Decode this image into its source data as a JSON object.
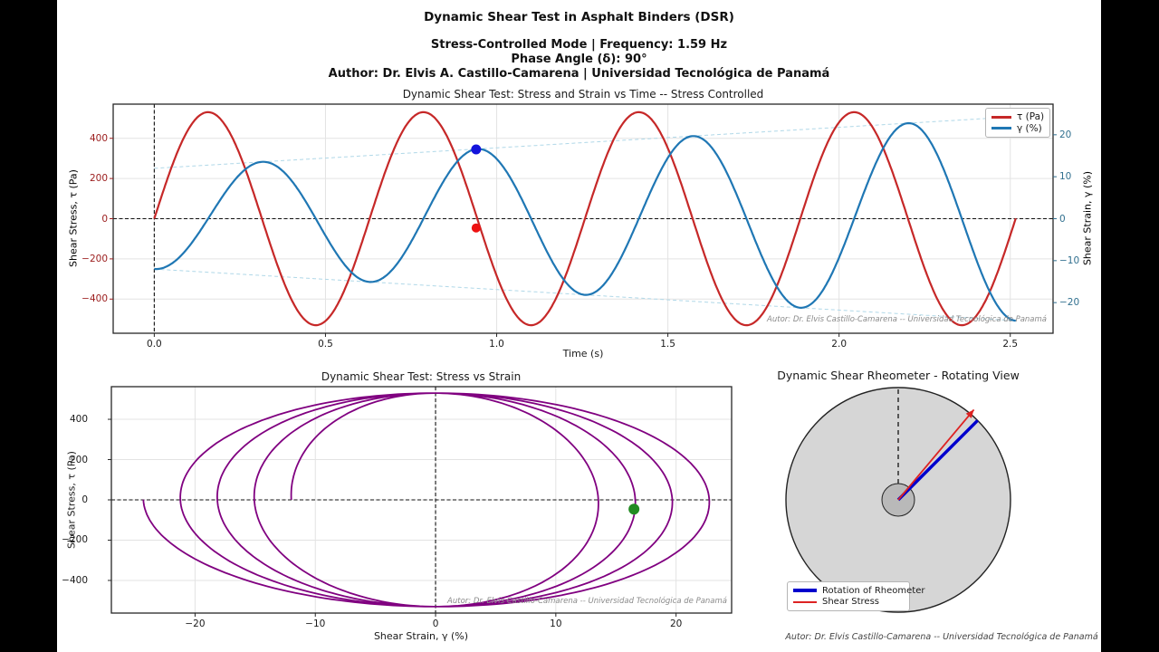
{
  "header": {
    "title": "Dynamic Shear Test in Asphalt Binders (DSR)",
    "subtitle1": "Stress-Controlled Mode | Frequency: 1.59 Hz",
    "subtitle2": "Phase Angle (δ): 90°",
    "subtitle3": "Author: Dr. Elvis A. Castillo-Camarena  |  Universidad Tecnológica de Panamá"
  },
  "footer": "Autor: Dr. Elvis Castillo-Camarena -- Universidad Tecnológica de Panamá",
  "colors": {
    "background": "#000000",
    "figure": "#ffffff",
    "stress_curve": "#c62828",
    "stress_axis_text": "#9b1c1c",
    "strain_curve": "#1f77b4",
    "strain_axis_text": "#31708f",
    "envelope": "#b0d8e8",
    "lissajous": "#800080",
    "marker_blue": "#1414dc",
    "marker_red": "#ee1111",
    "marker_green": "#228b22",
    "rheo_rotation": "#0000cd",
    "rheo_stress": "#dd2222",
    "disc_fill": "#d6d6d6",
    "disc_edge": "#222222",
    "hub_fill": "#b9b9b9",
    "grid": "#e3e3e3",
    "spine": "#262626",
    "dashed_ref": "#111111",
    "tick_text": "#1a1a1a",
    "watermark": "#8a8a8a",
    "footer_text": "#444444"
  },
  "chart_data": [
    {
      "id": "stress_strain_vs_time",
      "type": "line",
      "title": "Dynamic Shear Test: Stress and Strain vs Time -- Stress Controlled",
      "xlabel": "Time (s)",
      "ylabel_left": "Shear Stress, τ (Pa)",
      "ylabel_right": "Shear Strain, γ (%)",
      "xlim": [
        -0.12,
        2.625
      ],
      "ylim_left": [
        -570,
        570
      ],
      "ylim_right": [
        -27.3,
        27.3
      ],
      "xticks": [
        0.0,
        0.5,
        1.0,
        1.5,
        2.0,
        2.5
      ],
      "xtick_labels": [
        "0.0",
        "0.5",
        "1.0",
        "1.5",
        "2.0",
        "2.5"
      ],
      "yticks_left": [
        400,
        200,
        0,
        -200,
        -400
      ],
      "yticks_right": [
        20,
        10,
        0,
        -10,
        -20
      ],
      "grid": true,
      "legend_position": "upper right",
      "legend": [
        {
          "label": "τ (Pa)",
          "color_key": "stress_curve"
        },
        {
          "label": "γ (%)",
          "color_key": "strain_curve"
        }
      ],
      "series": [
        {
          "name": "τ (Pa)",
          "kind": "stress_sine",
          "amplitude_pa": 530,
          "frequency_hz": 1.59,
          "phase_deg": 0,
          "t_start_s": 0,
          "t_end_s": 2.516
        },
        {
          "name": "γ (%)",
          "kind": "strain_sine_growing",
          "amplitude_start_pct": 12.0,
          "amplitude_end_pct": 24.3,
          "frequency_hz": 1.59,
          "phase_lag_deg": 90,
          "t_start_s": 0,
          "t_end_s": 2.516
        }
      ],
      "strain_envelope_pct": {
        "start": 12.0,
        "end": 24.3
      },
      "reference_lines": {
        "vertical_at_t": 0,
        "horizontal_at_stress": 0
      },
      "markers": [
        {
          "series": "τ (Pa)",
          "t_s": 0.94,
          "stress_pa": -46,
          "color_key": "marker_red"
        },
        {
          "series": "γ (%)",
          "t_s": 0.94,
          "strain_pct": 16.5,
          "color_key": "marker_blue"
        }
      ],
      "watermark": "Autor: Dr. Elvis Castillo-Camarena -- Universidad Tecnológica de Panamá"
    },
    {
      "id": "stress_vs_strain",
      "type": "line",
      "title": "Dynamic Shear Test: Stress vs Strain",
      "xlabel": "Shear Strain, γ (%)",
      "ylabel": "Shear Stress, τ (Pa)",
      "xlim": [
        -26.96,
        24.62
      ],
      "ylim": [
        -562,
        562
      ],
      "xticks": [
        -20,
        -10,
        0,
        10,
        20
      ],
      "yticks": [
        400,
        200,
        0,
        -200,
        -400
      ],
      "grid": true,
      "curve": {
        "kind": "lissajous_spiral",
        "stress_amplitude_pa": 530,
        "strain_amplitude_start_pct": 12.0,
        "strain_amplitude_end_pct": 24.3,
        "frequency_hz": 1.59,
        "phase_lag_deg": 90,
        "t_start_s": 0,
        "t_end_s": 2.516,
        "n_loops": 4
      },
      "reference_lines": {
        "vertical_at_strain": 0,
        "horizontal_at_stress": 0
      },
      "marker": {
        "strain_pct": 16.5,
        "stress_pa": -46,
        "color_key": "marker_green"
      },
      "watermark": "Autor: Dr. Elvis Castillo-Camarena -- Universidad Tecnológica de Panamá"
    },
    {
      "id": "rheometer_rotating_view",
      "type": "schematic",
      "title": "Dynamic Shear Rheometer - Rotating View",
      "rotation_angle_deg_from_vertical": 45,
      "stress_angle_deg_from_vertical": 40,
      "legend": [
        {
          "label": "Rotation of Rheometer",
          "color_key": "rheo_rotation"
        },
        {
          "label": "Shear Stress",
          "color_key": "rheo_stress"
        }
      ]
    }
  ]
}
